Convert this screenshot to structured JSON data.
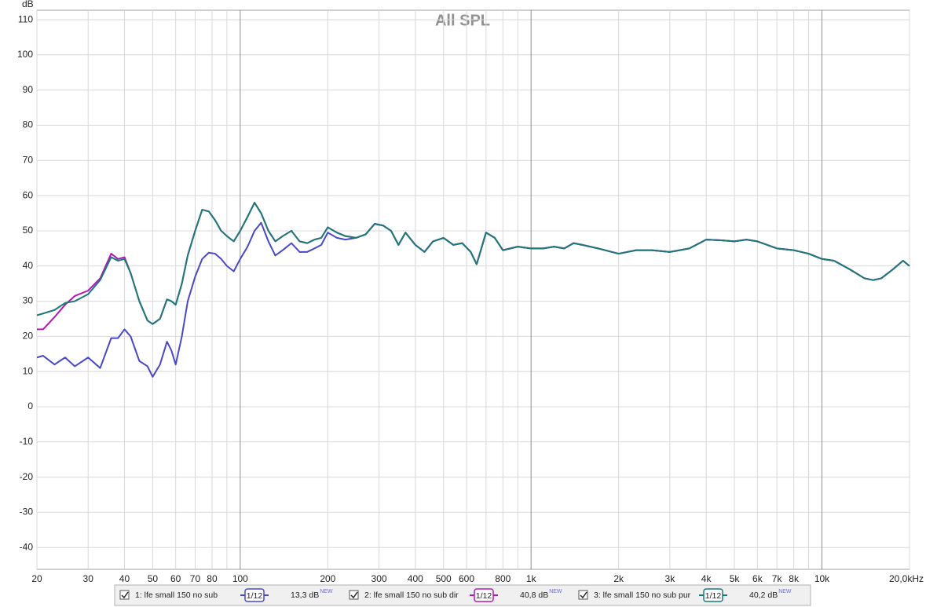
{
  "chart_data": {
    "type": "line",
    "title": "All SPL",
    "y_label": "dB",
    "log_x": true,
    "grid": true,
    "xlim": [
      20,
      20000
    ],
    "ylim": [
      -46.2,
      112.7
    ],
    "xticks": [
      20,
      30,
      40,
      50,
      60,
      70,
      80,
      100,
      200,
      300,
      400,
      500,
      600,
      800,
      {
        "value": 1000,
        "label": "1k"
      },
      {
        "value": 2000,
        "label": "2k"
      },
      {
        "value": 3000,
        "label": "3k"
      },
      {
        "value": 4000,
        "label": "4k"
      },
      {
        "value": 5000,
        "label": "5k"
      },
      {
        "value": 6000,
        "label": "6k"
      },
      {
        "value": 7000,
        "label": "7k"
      },
      {
        "value": 8000,
        "label": "8k"
      },
      {
        "value": 10000,
        "label": "10k"
      },
      {
        "value": 20000,
        "label": "20,0kHz"
      }
    ],
    "xminor": [
      90,
      700,
      900,
      9000
    ],
    "yticks": [
      110,
      100,
      90,
      80,
      70,
      60,
      50,
      40,
      30,
      20,
      10,
      0,
      -10,
      -20,
      -30,
      -40
    ],
    "x": [
      20,
      21,
      23,
      25,
      27,
      30,
      33,
      36,
      38,
      40,
      42,
      45,
      48,
      50,
      53,
      56,
      58,
      60,
      63,
      66,
      70,
      74,
      78,
      82,
      86,
      90,
      95,
      100,
      106,
      112,
      118,
      125,
      132,
      140,
      150,
      160,
      170,
      180,
      190,
      200,
      215,
      230,
      250,
      270,
      290,
      310,
      330,
      350,
      370,
      400,
      430,
      460,
      500,
      540,
      580,
      620,
      650,
      700,
      750,
      800,
      900,
      1000,
      1100,
      1200,
      1300,
      1400,
      1500,
      1700,
      2000,
      2300,
      2600,
      3000,
      3500,
      4000,
      4500,
      5000,
      5500,
      6000,
      7000,
      8000,
      9000,
      10000,
      11000,
      12500,
      14000,
      15000,
      16000,
      17500,
      19000,
      20000
    ],
    "series": [
      {
        "name": "1: lfe small 150 no sub",
        "color": "#4848c8",
        "smoothing": "1/12",
        "level": "13,3 dB",
        "badge": "NEW",
        "values": [
          14,
          14.5,
          12,
          14,
          11.5,
          14,
          11,
          19.5,
          19.5,
          22,
          20,
          13,
          11.5,
          8.5,
          12,
          18.5,
          16,
          12,
          20,
          30,
          37,
          42,
          43.8,
          43.5,
          42,
          40,
          38.5,
          42,
          45.5,
          50,
          52.3,
          47,
          43,
          44.5,
          46.5,
          44,
          44,
          45,
          46,
          49.5,
          48,
          47.5,
          48,
          49,
          52,
          51.5,
          50,
          46,
          49.5,
          46,
          44,
          47,
          48,
          46,
          46.5,
          44,
          40.5,
          49.5,
          48,
          44.5,
          45.5,
          45,
          45,
          45.5,
          45,
          46.5,
          46,
          45,
          43.5,
          44.5,
          44.5,
          44,
          45,
          47.5,
          47.3,
          47,
          47.5,
          47,
          45,
          44.5,
          43.5,
          42,
          41.5,
          39,
          36.5,
          36,
          36.5,
          39,
          41.5,
          40
        ]
      },
      {
        "name": "2: lfe small 150 no sub dir",
        "color": "#b01ab0",
        "smoothing": "1/12",
        "level": "40,8 dB",
        "badge": "NEW",
        "values": [
          22,
          22,
          25.5,
          29,
          31.5,
          33,
          36.5,
          43.5,
          42,
          42.5,
          38,
          30,
          24.5,
          23.5,
          25,
          30.5,
          30,
          29,
          35,
          43,
          50,
          56,
          55.5,
          53,
          50,
          48.5,
          47,
          50,
          54,
          58,
          55,
          50,
          47,
          48.5,
          50,
          47,
          46.5,
          47.5,
          48,
          51,
          49.5,
          48.5,
          48,
          49,
          52,
          51.5,
          50,
          46,
          49.5,
          46,
          44,
          47,
          48,
          46,
          46.5,
          44,
          40.5,
          49.5,
          48,
          44.5,
          45.5,
          45,
          45,
          45.5,
          45,
          46.5,
          46,
          45,
          43.5,
          44.5,
          44.5,
          44,
          45,
          47.5,
          47.3,
          47,
          47.5,
          47,
          45,
          44.5,
          43.5,
          42,
          41.5,
          39,
          36.5,
          36,
          36.5,
          39,
          41.5,
          40
        ]
      },
      {
        "name": "3: lfe small 150 no sub pur",
        "color": "#1a7a78",
        "smoothing": "1/12",
        "level": "40,2 dB",
        "badge": "NEW",
        "values": [
          26,
          26.5,
          27.5,
          29.5,
          30,
          32,
          36,
          42.5,
          41.5,
          42,
          38,
          30,
          24.5,
          23.5,
          25,
          30.5,
          30,
          29,
          35,
          43,
          50,
          56,
          55.5,
          53,
          50,
          48.5,
          47,
          50,
          54,
          58,
          55,
          50,
          47,
          48.5,
          50,
          47,
          46.5,
          47.5,
          48,
          51,
          49.5,
          48.5,
          48,
          49,
          52,
          51.5,
          50,
          46,
          49.5,
          46,
          44,
          47,
          48,
          46,
          46.5,
          44,
          40.5,
          49.5,
          48,
          44.5,
          45.5,
          45,
          45,
          45.5,
          45,
          46.5,
          46,
          45,
          43.5,
          44.5,
          44.5,
          44,
          45,
          47.5,
          47.3,
          47,
          47.5,
          47,
          45,
          44.5,
          43.5,
          42,
          41.5,
          39,
          36.5,
          36,
          36.5,
          39,
          41.5,
          40
        ]
      }
    ]
  }
}
